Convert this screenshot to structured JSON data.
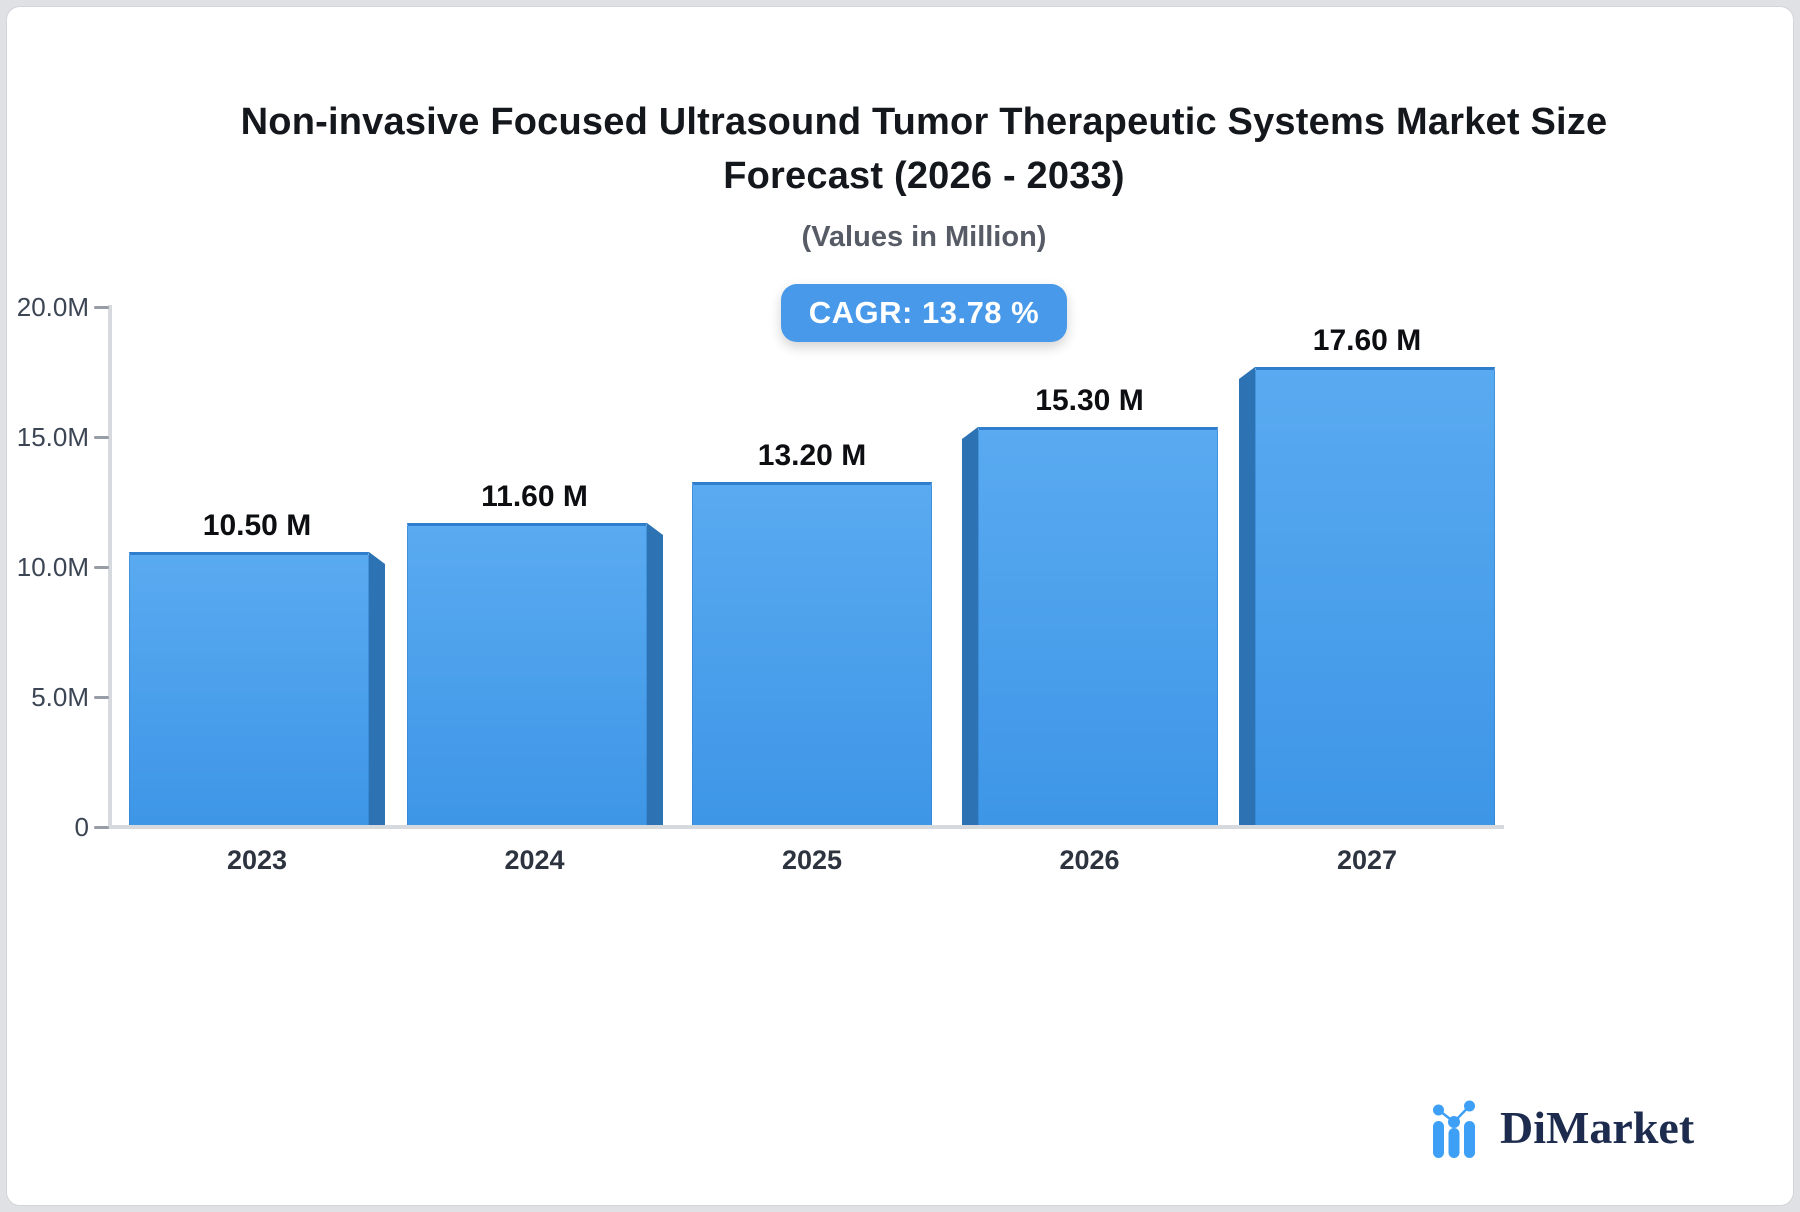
{
  "title": {
    "line1": "Non-invasive Focused Ultrasound Tumor Therapeutic Systems Market Size",
    "line2": "Forecast (2026 - 2033)",
    "subtitle": "(Values in Million)"
  },
  "badge": {
    "label": "CAGR: 13.78 %"
  },
  "chart_data": {
    "type": "bar",
    "title": "Non-invasive Focused Ultrasound Tumor Therapeutic Systems Market Size Forecast (2026 - 2033)",
    "subtitle": "(Values in Million)",
    "cagr_percent": 13.78,
    "unit": "Million",
    "categories": [
      "2023",
      "2024",
      "2025",
      "2026",
      "2027"
    ],
    "values": [
      10.5,
      11.6,
      13.2,
      15.3,
      17.6
    ],
    "bar_labels": [
      "10.50 M",
      "11.60 M",
      "13.20 M",
      "15.30 M",
      "17.60 M"
    ],
    "y_ticks": [
      {
        "label": "20.0M",
        "value": 20
      },
      {
        "label": "15.0M",
        "value": 15
      },
      {
        "label": "10.0M",
        "value": 10
      },
      {
        "label": "5.0M",
        "value": 5
      },
      {
        "label": "0",
        "value": 0
      }
    ],
    "ylim": [
      0,
      20
    ],
    "grid": false,
    "legend": false,
    "colors": {
      "bar_top": "#59aaf0",
      "bar_bottom": "#3e96e7",
      "bar_side": "#2d73b3",
      "bar_edge": "#2e7ecd",
      "axis": "#d6d9dd",
      "tick": "#979da6",
      "badge_bg": "#4899e9",
      "label_text": "#0c0e11"
    }
  },
  "logo": {
    "text": "DiMarket",
    "icon": "bar-line-chart-icon"
  }
}
